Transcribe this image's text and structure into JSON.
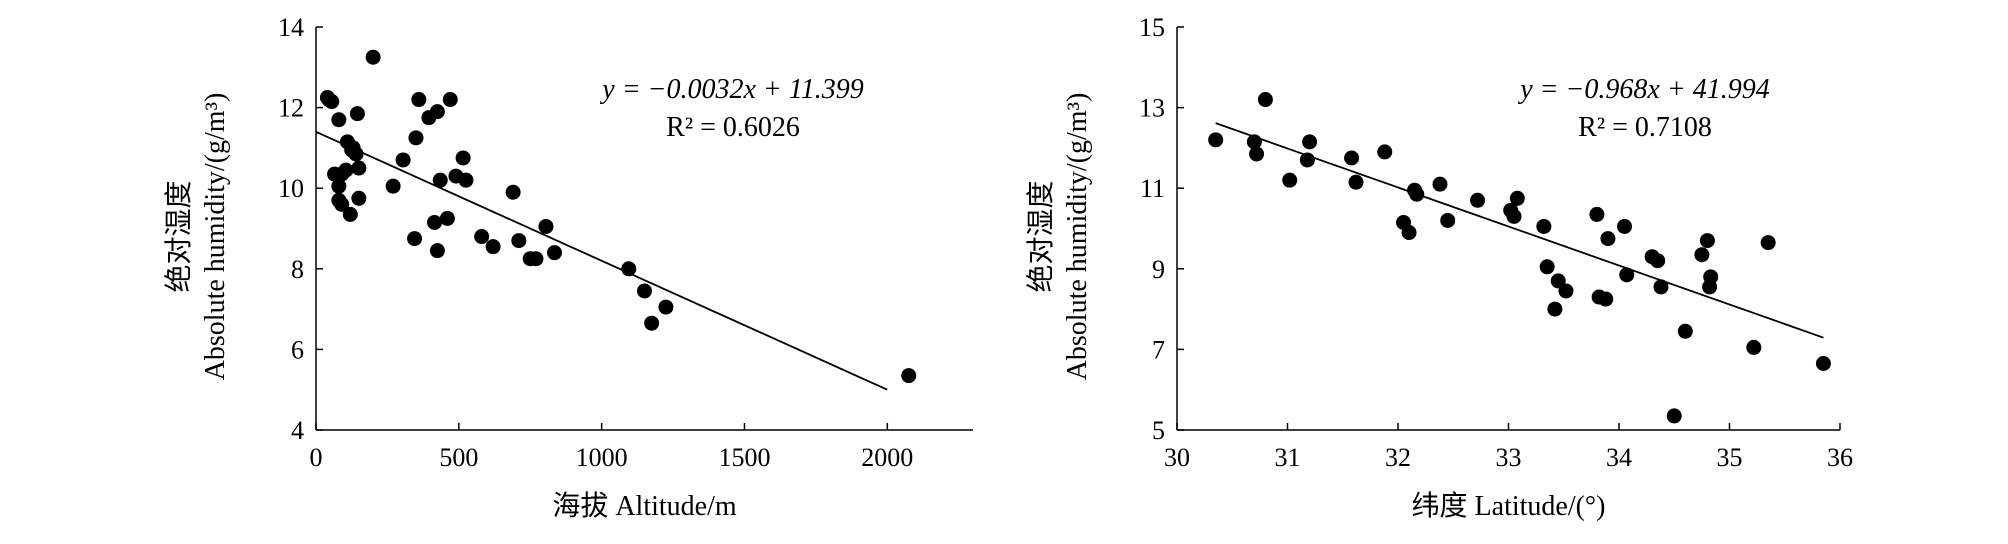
{
  "chart_data": [
    {
      "type": "scatter",
      "xlabel": "海拔 Altitude/m",
      "ylabel_cn": "绝对湿度",
      "ylabel_en": "Absolute humidity/(g/m³)",
      "xlim": [
        0,
        2300
      ],
      "ylim": [
        4,
        14
      ],
      "xticks": [
        "0",
        "500",
        "1000",
        "1500",
        "2000"
      ],
      "yticks": [
        "4",
        "6",
        "8",
        "10",
        "12",
        "14"
      ],
      "equation": "y = −0.0032x + 11.399",
      "r2": "R² = 0.6026",
      "trendline": {
        "slope": -0.0032,
        "intercept": 11.399,
        "x_range": [
          0,
          2000
        ]
      },
      "points": [
        [
          40,
          12.25
        ],
        [
          45,
          12.2
        ],
        [
          55,
          12.15
        ],
        [
          200,
          13.25
        ],
        [
          145,
          11.85
        ],
        [
          80,
          11.7
        ],
        [
          110,
          11.15
        ],
        [
          125,
          10.95
        ],
        [
          140,
          10.85
        ],
        [
          130,
          11.0
        ],
        [
          65,
          10.35
        ],
        [
          90,
          10.35
        ],
        [
          105,
          10.45
        ],
        [
          150,
          10.5
        ],
        [
          80,
          10.05
        ],
        [
          80,
          9.7
        ],
        [
          90,
          9.6
        ],
        [
          150,
          9.75
        ],
        [
          120,
          9.35
        ],
        [
          270,
          10.05
        ],
        [
          305,
          10.7
        ],
        [
          350,
          11.25
        ],
        [
          360,
          12.2
        ],
        [
          395,
          11.75
        ],
        [
          425,
          11.9
        ],
        [
          470,
          12.2
        ],
        [
          435,
          10.2
        ],
        [
          490,
          10.3
        ],
        [
          515,
          10.75
        ],
        [
          525,
          10.2
        ],
        [
          460,
          9.25
        ],
        [
          415,
          9.15
        ],
        [
          345,
          8.75
        ],
        [
          425,
          8.45
        ],
        [
          580,
          8.8
        ],
        [
          620,
          8.55
        ],
        [
          690,
          9.9
        ],
        [
          710,
          8.7
        ],
        [
          750,
          8.25
        ],
        [
          770,
          8.25
        ],
        [
          805,
          9.05
        ],
        [
          835,
          8.4
        ],
        [
          1095,
          8.0
        ],
        [
          1150,
          7.45
        ],
        [
          1175,
          6.65
        ],
        [
          1225,
          7.05
        ],
        [
          2075,
          5.35
        ]
      ]
    },
    {
      "type": "scatter",
      "xlabel": "纬度 Latitude/(°)",
      "ylabel_cn": "绝对湿度",
      "ylabel_en": "Absolute humidity/(g/m³)",
      "xlim": [
        30,
        36
      ],
      "ylim": [
        5,
        15
      ],
      "xticks": [
        "30",
        "31",
        "32",
        "33",
        "34",
        "35",
        "36"
      ],
      "yticks": [
        "5",
        "7",
        "9",
        "11",
        "13",
        "15"
      ],
      "equation": "y = −0.968x + 41.994",
      "r2": "R² = 0.7108",
      "trendline": {
        "slope": -0.968,
        "intercept": 41.994,
        "x_range": [
          30.35,
          35.85
        ]
      },
      "points": [
        [
          30.35,
          12.2
        ],
        [
          30.7,
          12.15
        ],
        [
          30.72,
          11.85
        ],
        [
          30.8,
          13.2
        ],
        [
          31.02,
          11.2
        ],
        [
          31.18,
          11.7
        ],
        [
          31.2,
          12.15
        ],
        [
          31.58,
          11.75
        ],
        [
          31.62,
          11.15
        ],
        [
          31.88,
          11.9
        ],
        [
          32.05,
          10.15
        ],
        [
          32.1,
          9.9
        ],
        [
          32.15,
          10.95
        ],
        [
          32.17,
          10.85
        ],
        [
          32.38,
          11.1
        ],
        [
          32.45,
          10.2
        ],
        [
          32.72,
          10.7
        ],
        [
          33.02,
          10.45
        ],
        [
          33.05,
          10.3
        ],
        [
          33.08,
          10.75
        ],
        [
          33.32,
          10.05
        ],
        [
          33.35,
          9.05
        ],
        [
          33.42,
          8.0
        ],
        [
          33.45,
          8.7
        ],
        [
          33.52,
          8.45
        ],
        [
          33.8,
          10.35
        ],
        [
          33.82,
          8.3
        ],
        [
          33.88,
          8.25
        ],
        [
          33.9,
          9.75
        ],
        [
          34.05,
          10.05
        ],
        [
          34.07,
          8.85
        ],
        [
          34.3,
          9.3
        ],
        [
          34.35,
          9.2
        ],
        [
          34.38,
          8.55
        ],
        [
          34.5,
          5.35
        ],
        [
          34.6,
          7.45
        ],
        [
          34.75,
          9.35
        ],
        [
          34.8,
          9.7
        ],
        [
          34.83,
          8.8
        ],
        [
          34.82,
          8.55
        ],
        [
          35.22,
          7.05
        ],
        [
          35.35,
          9.65
        ],
        [
          35.85,
          6.65
        ]
      ]
    }
  ]
}
